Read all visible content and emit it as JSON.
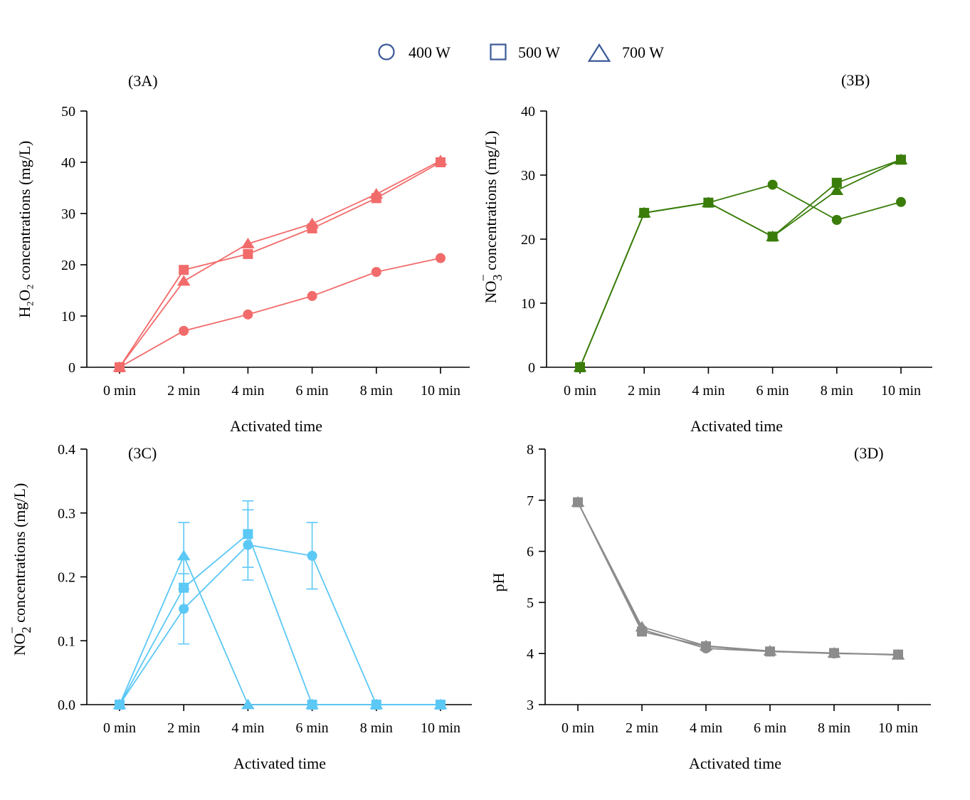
{
  "legend": {
    "placement": "top-center",
    "color": "#3b5998",
    "items": [
      {
        "label": "400 W",
        "marker": "circle"
      },
      {
        "label": "500 W",
        "marker": "square"
      },
      {
        "label": "700 W",
        "marker": "triangle"
      }
    ]
  },
  "chart_data": [
    {
      "type": "line",
      "panel_label": "(3A)",
      "color": "#f26b6b",
      "categories": [
        "0 min",
        "2 min",
        "4 min",
        "6 min",
        "8 min",
        "10 min"
      ],
      "xlabel": "Activated time",
      "ylabel": "H₂O₂ concentrations (mg/L)",
      "ylim": [
        0,
        50
      ],
      "yticks": [
        0,
        10,
        20,
        30,
        40,
        50
      ],
      "series": [
        {
          "name": "400 W",
          "marker": "circle",
          "values": [
            0,
            7.1,
            10.3,
            13.9,
            18.6,
            21.3
          ]
        },
        {
          "name": "500 W",
          "marker": "square",
          "values": [
            0,
            19.0,
            22.1,
            27.1,
            33.0,
            40.0
          ]
        },
        {
          "name": "700 W",
          "marker": "triangle",
          "values": [
            0,
            16.8,
            24.1,
            28.0,
            33.8,
            40.3
          ]
        }
      ]
    },
    {
      "type": "line",
      "panel_label": "(3B)",
      "color": "#3a7d0a",
      "categories": [
        "0 min",
        "2 min",
        "4 min",
        "6 min",
        "8 min",
        "10 min"
      ],
      "xlabel": "Activated time",
      "ylabel_main": "NO",
      "ylabel_sub": "3",
      "ylabel_sup": "−",
      "ylabel_rest": " concentrations (mg/L)",
      "ylim": [
        0,
        40
      ],
      "yticks": [
        0,
        10,
        20,
        30,
        40
      ],
      "series": [
        {
          "name": "400 W",
          "marker": "circle",
          "values": [
            0,
            24.1,
            25.7,
            28.5,
            23.0,
            25.8
          ]
        },
        {
          "name": "500 W",
          "marker": "square",
          "values": [
            0,
            24.1,
            25.7,
            20.4,
            28.8,
            32.4
          ]
        },
        {
          "name": "700 W",
          "marker": "triangle",
          "values": [
            0,
            24.1,
            25.7,
            20.4,
            27.6,
            32.4
          ]
        }
      ]
    },
    {
      "type": "line",
      "panel_label": "(3C)",
      "color": "#5bc8f5",
      "categories": [
        "0 min",
        "2 min",
        "4 min",
        "6 min",
        "8 min",
        "10 min"
      ],
      "xlabel": "Activated time",
      "ylabel_main": "NO",
      "ylabel_sub": "2",
      "ylabel_sup": "−",
      "ylabel_rest": " concentrations (mg/L)",
      "ylim": [
        0,
        0.4
      ],
      "yticks": [
        0.0,
        0.1,
        0.2,
        0.3,
        0.4
      ],
      "ytick_decimals": 1,
      "series": [
        {
          "name": "400 W",
          "marker": "circle",
          "values": [
            0,
            0.15,
            0.25,
            0.233,
            0,
            0
          ],
          "errors": [
            0,
            0.055,
            0.055,
            0.052,
            0,
            0
          ]
        },
        {
          "name": "500 W",
          "marker": "square",
          "values": [
            0,
            0.183,
            0.267,
            0,
            0,
            0
          ],
          "errors": [
            0,
            0,
            0.052,
            0,
            0,
            0
          ]
        },
        {
          "name": "700 W",
          "marker": "triangle",
          "values": [
            0,
            0.233,
            0,
            0,
            0,
            0
          ],
          "errors": [
            0,
            0.052,
            0,
            0,
            0,
            0
          ]
        }
      ]
    },
    {
      "type": "line",
      "panel_label": "(3D)",
      "color": "#8c8c8c",
      "categories": [
        "0 min",
        "2 min",
        "4 min",
        "6 min",
        "8 min",
        "10 min"
      ],
      "xlabel": "Activated time",
      "ylabel": "pH",
      "ylim": [
        3,
        8
      ],
      "yticks": [
        3,
        4,
        5,
        6,
        7,
        8
      ],
      "series": [
        {
          "name": "400 W",
          "marker": "circle",
          "values": [
            6.96,
            4.47,
            4.1,
            4.04,
            4.0,
            3.98
          ]
        },
        {
          "name": "500 W",
          "marker": "square",
          "values": [
            6.96,
            4.43,
            4.14,
            4.04,
            4.01,
            3.98
          ]
        },
        {
          "name": "700 W",
          "marker": "triangle",
          "values": [
            6.96,
            4.52,
            4.15,
            4.05,
            4.01,
            3.97
          ]
        }
      ]
    }
  ]
}
